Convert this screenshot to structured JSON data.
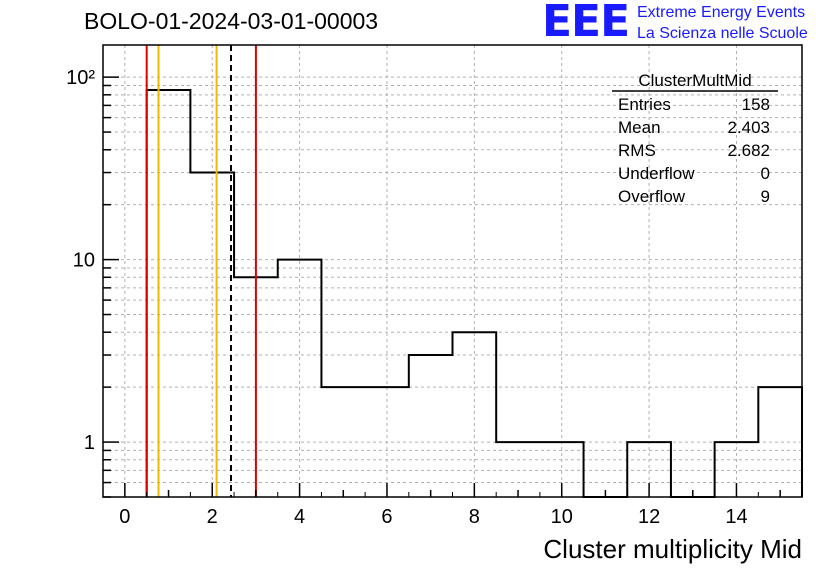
{
  "header": {
    "title": "BOLO-01-2024-03-01-00003",
    "logo_text": "EEE",
    "logo_line1": "Extreme Energy Events",
    "logo_line2": "La Scienza nelle Scuole",
    "logo_color": "#1a1aff"
  },
  "chart_data": {
    "type": "bar",
    "style": "step-histogram",
    "xlabel": "Cluster multiplicity Mid",
    "ylabel": "",
    "bin_edges": [
      0.5,
      1.5,
      2.5,
      3.5,
      4.5,
      5.5,
      6.5,
      7.5,
      8.5,
      9.5,
      10.5,
      11.5,
      12.5,
      13.5,
      14.5,
      15.5
    ],
    "values": [
      85,
      30,
      8,
      10,
      2,
      2,
      3,
      4,
      1,
      1,
      0,
      1,
      0,
      1,
      2
    ],
    "xlim": [
      -0.5,
      15.5
    ],
    "ylim": [
      0.5,
      150
    ],
    "yscale": "log",
    "grid": true,
    "x_ticks": [
      "0",
      "2",
      "4",
      "6",
      "8",
      "10",
      "12",
      "14"
    ],
    "y_ticks": [
      "1",
      "10",
      "10²"
    ],
    "markers": [
      {
        "x": 0.5,
        "color": "#e00000",
        "style": "solid"
      },
      {
        "x": 0.77,
        "color": "#f5b800",
        "style": "solid"
      },
      {
        "x": 2.1,
        "color": "#f5b800",
        "style": "solid"
      },
      {
        "x": 2.43,
        "color": "#000000",
        "style": "dashed"
      },
      {
        "x": 3.0,
        "color": "#e00000",
        "style": "solid"
      }
    ],
    "stats_box": {
      "title": "ClusterMultMid",
      "rows": [
        {
          "label": "Entries",
          "value": "158"
        },
        {
          "label": "Mean",
          "value": "2.403"
        },
        {
          "label": "RMS",
          "value": "2.682"
        },
        {
          "label": "Underflow",
          "value": "0"
        },
        {
          "label": "Overflow",
          "value": "9"
        }
      ]
    }
  }
}
